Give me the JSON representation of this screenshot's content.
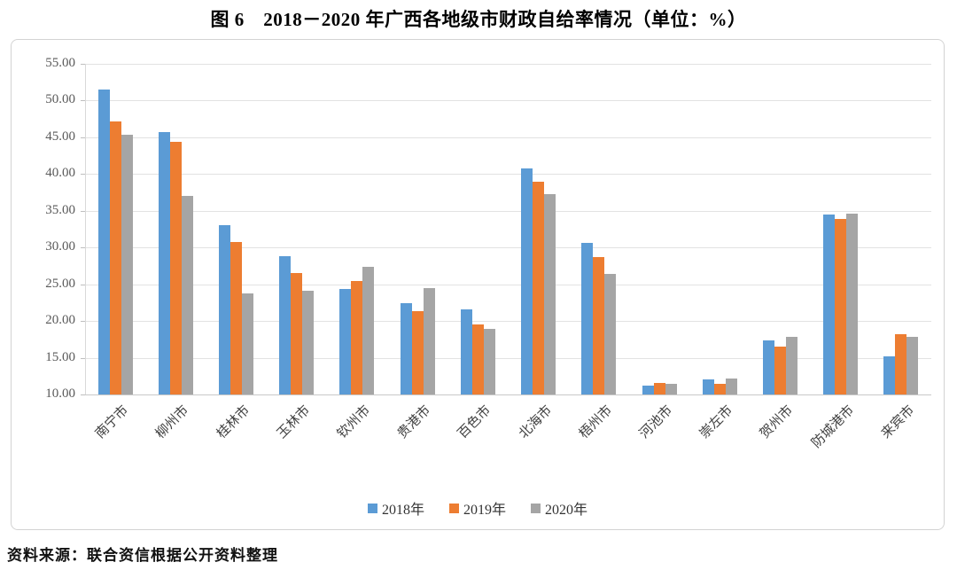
{
  "title": "图 6　2018－2020 年广西各地级市财政自给率情况（单位：%）",
  "source_note": "资料来源：联合资信根据公开资料整理",
  "chart_data": {
    "type": "bar",
    "title": "图 6　2018－2020 年广西各地级市财政自给率情况（单位：%）",
    "unit": "%",
    "categories": [
      "南宁市",
      "柳州市",
      "桂林市",
      "玉林市",
      "钦州市",
      "贵港市",
      "百色市",
      "北海市",
      "梧州市",
      "河池市",
      "崇左市",
      "贺州市",
      "防城港市",
      "来宾市"
    ],
    "series": [
      {
        "name": "2018年",
        "color": "#5B9BD5",
        "values": [
          51.5,
          45.7,
          33.1,
          28.8,
          24.3,
          22.4,
          21.6,
          40.8,
          30.6,
          11.2,
          12.0,
          17.4,
          34.5,
          15.2
        ]
      },
      {
        "name": "2019年",
        "color": "#ED7D31",
        "values": [
          47.1,
          44.4,
          30.7,
          26.5,
          25.5,
          21.4,
          19.5,
          38.9,
          28.7,
          11.6,
          11.5,
          16.5,
          33.9,
          18.2
        ]
      },
      {
        "name": "2020年",
        "color": "#A5A5A5",
        "values": [
          45.4,
          37.0,
          23.7,
          24.1,
          27.4,
          24.5,
          18.9,
          37.3,
          26.4,
          11.4,
          12.2,
          17.9,
          34.6,
          17.9
        ]
      }
    ],
    "ylim": [
      10,
      55
    ],
    "ytick_step": 5,
    "ytick_labels": [
      "55.00",
      "50.00",
      "45.00",
      "40.00",
      "35.00",
      "30.00",
      "25.00",
      "20.00",
      "15.00",
      "10.00"
    ],
    "grid": true,
    "legend_position": "bottom",
    "xlabel": "",
    "ylabel": ""
  }
}
